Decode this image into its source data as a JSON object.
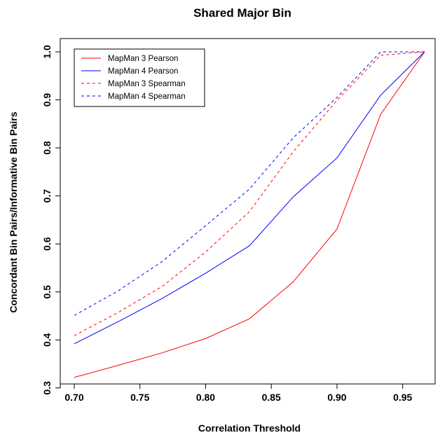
{
  "chart_data": {
    "type": "line",
    "title": "Shared Major Bin",
    "xlabel": "Correlation Threshold",
    "ylabel": "Concordant Bin Pairs/Informative Bin Pairs",
    "xlim": [
      0.7,
      0.9667
    ],
    "ylim": [
      0.32,
      1.0
    ],
    "xticks": [
      0.7,
      0.75,
      0.8,
      0.85,
      0.9,
      0.95
    ],
    "xtick_labels": [
      "0.70",
      "0.75",
      "0.80",
      "0.85",
      "0.90",
      "0.95"
    ],
    "yticks": [
      0.3,
      0.4,
      0.5,
      0.6,
      0.7,
      0.8,
      0.9,
      1.0
    ],
    "ytick_labels": [
      "0.3",
      "0.4",
      "0.5",
      "0.6",
      "0.7",
      "0.8",
      "0.9",
      "1.0"
    ],
    "grid": false,
    "legend_position": "top-left",
    "x": [
      0.7,
      0.7333,
      0.7667,
      0.8,
      0.8333,
      0.8667,
      0.9,
      0.9333,
      0.9667
    ],
    "series": [
      {
        "name": "MapMan 3 Pearson",
        "color": "#ff0000",
        "dash": "solid",
        "values": [
          0.322,
          0.347,
          0.373,
          0.403,
          0.444,
          0.521,
          0.631,
          0.87,
          1.0
        ]
      },
      {
        "name": "MapMan 4 Pearson",
        "color": "#0000ff",
        "dash": "solid",
        "values": [
          0.392,
          0.438,
          0.486,
          0.539,
          0.596,
          0.698,
          0.779,
          0.91,
          1.0
        ]
      },
      {
        "name": "MapMan 3 Spearman",
        "color": "#ff0000",
        "dash": "dashed",
        "values": [
          0.409,
          0.457,
          0.511,
          0.583,
          0.667,
          0.792,
          0.899,
          0.993,
          1.0
        ]
      },
      {
        "name": "MapMan 4 Spearman",
        "color": "#0000ff",
        "dash": "dashed",
        "values": [
          0.451,
          0.502,
          0.563,
          0.638,
          0.714,
          0.821,
          0.905,
          1.0,
          1.0
        ]
      }
    ]
  }
}
